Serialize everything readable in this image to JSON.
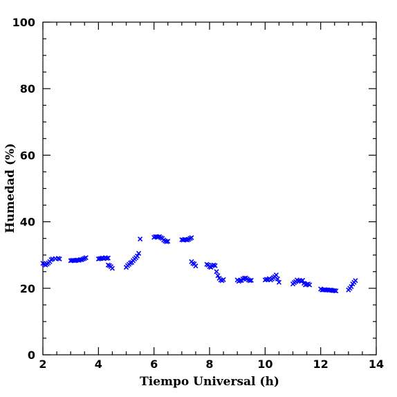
{
  "chart_data": {
    "type": "scatter",
    "title": "",
    "xlabel": "Tiempo Universal (h)",
    "ylabel": "Humedad (%)",
    "xlim": [
      2,
      14
    ],
    "ylim": [
      0,
      100
    ],
    "x_ticks": [
      2,
      4,
      6,
      8,
      10,
      12,
      14
    ],
    "y_ticks": [
      0,
      20,
      40,
      60,
      80,
      100
    ],
    "grid": false,
    "marker": "x",
    "marker_color": "#0000ff",
    "series": [
      {
        "x": [
          2.0,
          2.05,
          2.1,
          2.15,
          2.2,
          2.25,
          2.3,
          2.35,
          2.45,
          2.55,
          2.6,
          3.0,
          3.05,
          3.1,
          3.15,
          3.2,
          3.25,
          3.3,
          3.35,
          3.4,
          3.45,
          3.5,
          3.55,
          4.0,
          4.05,
          4.1,
          4.15,
          4.2,
          4.25,
          4.3,
          4.35,
          4.35,
          4.4,
          4.45,
          4.5,
          5.0,
          5.05,
          5.1,
          5.15,
          5.2,
          5.25,
          5.3,
          5.35,
          5.4,
          5.45,
          5.5,
          6.0,
          6.05,
          6.1,
          6.15,
          6.2,
          6.25,
          6.3,
          6.35,
          6.4,
          6.45,
          6.5,
          7.0,
          7.05,
          7.1,
          7.15,
          7.2,
          7.25,
          7.3,
          7.35,
          7.35,
          7.4,
          7.45,
          7.5,
          7.9,
          7.95,
          8.0,
          8.05,
          8.1,
          8.15,
          8.2,
          8.25,
          8.3,
          8.35,
          8.4,
          8.45,
          8.5,
          9.0,
          9.05,
          9.1,
          9.15,
          9.2,
          9.25,
          9.3,
          9.35,
          9.4,
          9.45,
          9.5,
          10.0,
          10.05,
          10.1,
          10.15,
          10.2,
          10.25,
          10.3,
          10.35,
          10.4,
          10.45,
          10.5,
          11.0,
          11.05,
          11.1,
          11.15,
          11.2,
          11.25,
          11.3,
          11.35,
          11.4,
          11.45,
          11.5,
          11.55,
          11.6,
          12.0,
          12.05,
          12.1,
          12.15,
          12.2,
          12.25,
          12.3,
          12.35,
          12.4,
          12.45,
          12.5,
          12.55,
          13.0,
          13.05,
          13.1,
          13.15,
          13.2,
          13.25
        ],
        "y": [
          27.5,
          27.2,
          27.0,
          27.3,
          27.6,
          28.0,
          28.6,
          28.8,
          28.9,
          29.0,
          28.8,
          28.3,
          28.4,
          28.4,
          28.3,
          28.4,
          28.5,
          28.4,
          28.6,
          28.6,
          28.8,
          29.0,
          29.2,
          28.8,
          28.9,
          29.0,
          29.1,
          28.9,
          29.2,
          29.0,
          29.1,
          27.0,
          26.8,
          26.5,
          26.0,
          26.3,
          26.8,
          27.2,
          27.6,
          27.8,
          28.3,
          28.8,
          29.2,
          29.7,
          30.5,
          34.8,
          35.3,
          35.5,
          35.5,
          35.4,
          35.5,
          35.2,
          35.0,
          34.5,
          34.2,
          34.0,
          34.1,
          34.6,
          34.5,
          34.7,
          34.6,
          34.5,
          34.7,
          35.0,
          35.2,
          28.0,
          27.5,
          27.3,
          26.7,
          27.2,
          27.0,
          26.5,
          26.3,
          26.8,
          27.0,
          26.8,
          25.0,
          23.8,
          23.0,
          22.5,
          22.3,
          22.6,
          22.5,
          22.1,
          22.3,
          22.4,
          22.8,
          23.0,
          23.1,
          22.8,
          22.5,
          22.3,
          22.4,
          22.5,
          22.7,
          22.6,
          22.9,
          22.5,
          22.8,
          23.2,
          23.5,
          24.0,
          22.8,
          21.8,
          21.3,
          21.7,
          22.0,
          22.5,
          22.2,
          22.3,
          22.1,
          22.4,
          21.5,
          21.0,
          21.2,
          21.3,
          21.0,
          19.8,
          19.5,
          19.5,
          19.6,
          19.5,
          19.5,
          19.4,
          19.5,
          19.4,
          19.3,
          19.3,
          19.2,
          19.5,
          20.0,
          20.5,
          21.3,
          21.8,
          22.3
        ]
      }
    ]
  }
}
